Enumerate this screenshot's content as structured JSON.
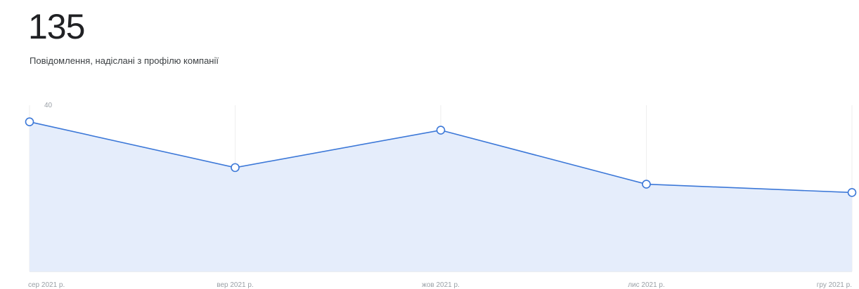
{
  "summary": {
    "total": "135",
    "description": "Повідомлення, надіслані з профілю компанії"
  },
  "colors": {
    "line": "#3c78d8",
    "area": "#e5edfb",
    "grid": "#eeeeee",
    "axis_text": "#9aa0a6"
  },
  "chart_data": {
    "type": "area",
    "categories": [
      "сер 2021 р.",
      "вер 2021 р.",
      "жов 2021 р.",
      "лис 2021 р.",
      "гру 2021 р."
    ],
    "values": [
      36,
      25,
      34,
      21,
      19
    ],
    "yticks": [
      10,
      20,
      30,
      40
    ],
    "ylim": [
      0,
      40
    ],
    "grid": true,
    "title": "",
    "xlabel": "",
    "ylabel": ""
  }
}
